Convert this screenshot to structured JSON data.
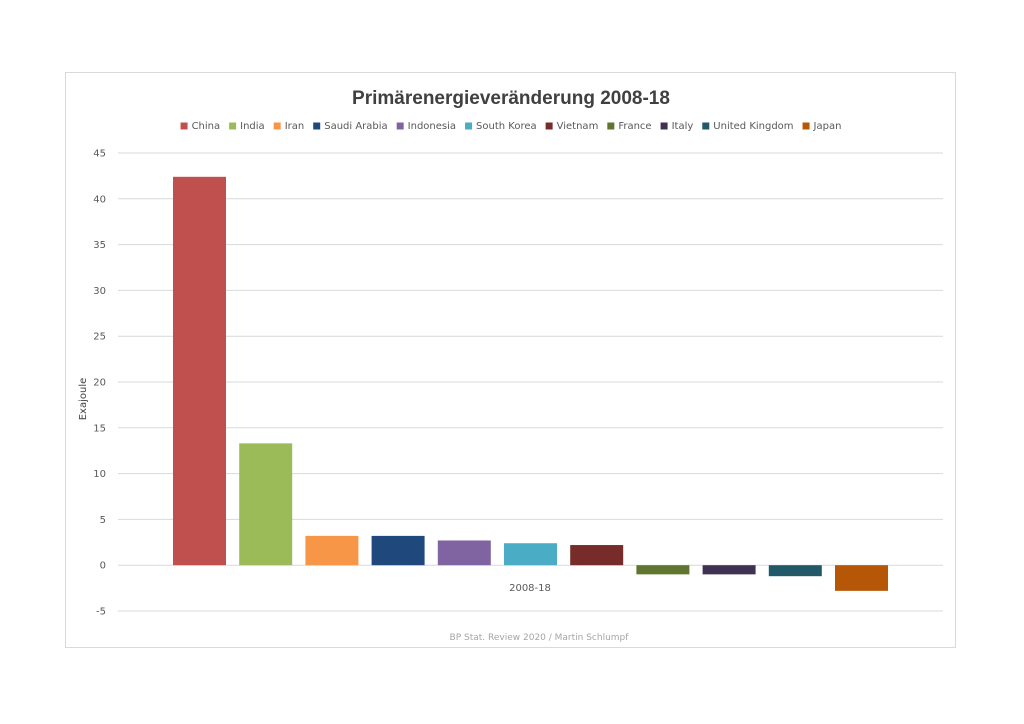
{
  "chart_data": {
    "type": "bar",
    "title": "Primärenergieveränderung 2008-18",
    "ylabel": "Exajoule",
    "xlabel": "",
    "category_label": "2008-18",
    "ylim": [
      -5,
      45
    ],
    "yticks": [
      -5,
      0,
      5,
      10,
      15,
      20,
      25,
      30,
      35,
      40,
      45
    ],
    "grid": true,
    "legend_position": "top",
    "source": "BP Stat. Review 2020 / Martin Schlumpf",
    "series": [
      {
        "name": "China",
        "value": 42.4,
        "color": "#C0504D"
      },
      {
        "name": "India",
        "value": 13.3,
        "color": "#9BBB59"
      },
      {
        "name": "Iran",
        "value": 3.2,
        "color": "#F79646"
      },
      {
        "name": "Saudi Arabia",
        "value": 3.2,
        "color": "#1F497D"
      },
      {
        "name": "Indonesia",
        "value": 2.7,
        "color": "#8064A2"
      },
      {
        "name": "South Korea",
        "value": 2.4,
        "color": "#4BACC6"
      },
      {
        "name": "Vietnam",
        "value": 2.2,
        "color": "#772C2A"
      },
      {
        "name": "France",
        "value": -1.0,
        "color": "#5F7530"
      },
      {
        "name": "Italy",
        "value": -1.0,
        "color": "#3F3151"
      },
      {
        "name": "United Kingdom",
        "value": -1.2,
        "color": "#215968"
      },
      {
        "name": "Japan",
        "value": -2.8,
        "color": "#B65708"
      }
    ]
  }
}
